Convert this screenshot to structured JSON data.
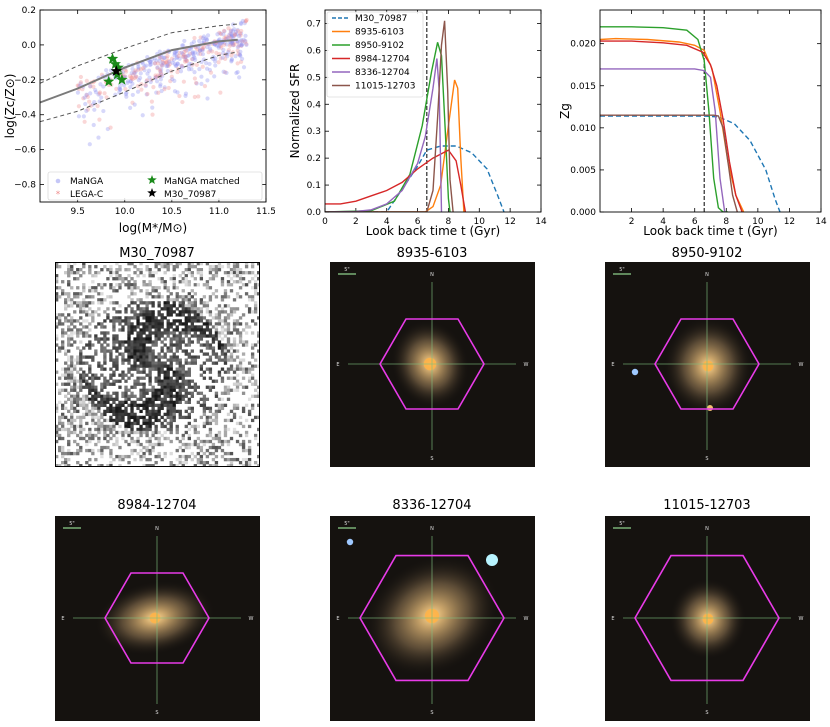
{
  "chart_data": [
    {
      "type": "scatter",
      "xlabel": "log(M*/M⊙)",
      "ylabel": "log(Zc/Z⊙)",
      "xlim": [
        9.1,
        11.5
      ],
      "ylim": [
        -0.9,
        0.2
      ],
      "xticks": [
        "9.5",
        "10.0",
        "10.5",
        "11.0",
        "11.5"
      ],
      "xtick_values": [
        9.5,
        10.0,
        10.5,
        11.0,
        11.5
      ],
      "yticks": [
        "0.2",
        "0.0",
        "−0.2",
        "−0.4",
        "−0.6",
        "−0.8"
      ],
      "ytick_values": [
        0.2,
        0.0,
        -0.2,
        -0.4,
        -0.6,
        -0.8
      ],
      "legend": [
        "MaNGA",
        "LEGA-C",
        "MaNGA matched",
        "M30_70987"
      ],
      "colors": {
        "manga": "#8c8ff0",
        "legac": "#f08c8c",
        "matched": "#1a8a1a",
        "m30": "#000000",
        "median": "#7a7a7a",
        "band": "#555555"
      },
      "median_line": {
        "x": [
          9.1,
          9.5,
          10.0,
          10.5,
          11.0,
          11.2
        ],
        "y": [
          -0.33,
          -0.25,
          -0.13,
          -0.03,
          0.02,
          0.03
        ]
      },
      "upper_band": {
        "x": [
          9.1,
          9.5,
          10.0,
          10.5,
          11.0,
          11.2
        ],
        "y": [
          -0.22,
          -0.12,
          -0.02,
          0.07,
          0.11,
          0.12
        ]
      },
      "lower_band": {
        "x": [
          9.1,
          9.5,
          10.0,
          10.5,
          11.0,
          11.2
        ],
        "y": [
          -0.44,
          -0.38,
          -0.27,
          -0.15,
          -0.06,
          -0.04
        ]
      },
      "matched_points": {
        "x": [
          9.87,
          9.9,
          9.93,
          9.83,
          9.97,
          9.92
        ],
        "y": [
          -0.08,
          -0.11,
          -0.13,
          -0.21,
          -0.2,
          -0.17
        ]
      },
      "m30_point": {
        "x": 9.91,
        "y": -0.15
      }
    },
    {
      "type": "line",
      "xlabel": "Look back time t (Gyr)",
      "ylabel": "Normalized SFR",
      "xlim": [
        0,
        14
      ],
      "ylim": [
        0,
        0.75
      ],
      "xticks": [
        "0",
        "2",
        "4",
        "6",
        "8",
        "10",
        "12",
        "14"
      ],
      "xtick_values": [
        0,
        2,
        4,
        6,
        8,
        10,
        12,
        14
      ],
      "yticks": [
        "0.0",
        "0.1",
        "0.2",
        "0.3",
        "0.4",
        "0.5",
        "0.6",
        "0.7"
      ],
      "ytick_values": [
        0,
        0.1,
        0.2,
        0.3,
        0.4,
        0.5,
        0.6,
        0.7
      ],
      "vline": 6.6,
      "series": [
        {
          "name": "M30_70987",
          "color": "#1f77b4",
          "dashed": true,
          "x": [
            0,
            4,
            6,
            6.6,
            7.5,
            8.5,
            9.5,
            10.5,
            11.2,
            11.6
          ],
          "y": [
            0,
            0,
            0.17,
            0.23,
            0.245,
            0.245,
            0.22,
            0.16,
            0.06,
            0
          ]
        },
        {
          "name": "8935-6103",
          "color": "#ff7f0e",
          "dashed": false,
          "x": [
            0,
            6.5,
            7.0,
            7.5,
            8.0,
            8.4,
            8.6,
            8.8,
            9.0
          ],
          "y": [
            0,
            0,
            0.02,
            0.1,
            0.32,
            0.49,
            0.46,
            0.2,
            0
          ]
        },
        {
          "name": "8950-9102",
          "color": "#2ca02c",
          "dashed": false,
          "x": [
            0,
            3,
            4.5,
            5.5,
            6.3,
            6.9,
            7.3,
            7.55,
            7.8,
            8.0,
            8.1
          ],
          "y": [
            0,
            0.005,
            0.04,
            0.14,
            0.32,
            0.52,
            0.63,
            0.58,
            0.3,
            0.05,
            0
          ]
        },
        {
          "name": "8984-12704",
          "color": "#d62728",
          "dashed": false,
          "x": [
            0,
            1,
            2,
            3,
            4,
            5,
            6,
            7,
            8,
            8.5,
            8.8,
            9.1
          ],
          "y": [
            0.03,
            0.03,
            0.04,
            0.06,
            0.08,
            0.11,
            0.16,
            0.2,
            0.23,
            0.19,
            0.1,
            0
          ]
        },
        {
          "name": "8336-12704",
          "color": "#9467bd",
          "dashed": false,
          "x": [
            0,
            2,
            3,
            4,
            5,
            6,
            6.5,
            7.0,
            7.25,
            7.4,
            7.55
          ],
          "y": [
            0,
            0.002,
            0.008,
            0.03,
            0.08,
            0.18,
            0.28,
            0.46,
            0.57,
            0.45,
            0
          ]
        },
        {
          "name": "11015-12703",
          "color": "#8c564b",
          "dashed": false,
          "x": [
            0,
            6.6,
            7.0,
            7.3,
            7.55,
            7.75,
            7.95,
            8.1,
            8.3
          ],
          "y": [
            0,
            0,
            0.08,
            0.35,
            0.62,
            0.71,
            0.45,
            0.12,
            0
          ]
        }
      ]
    },
    {
      "type": "line",
      "xlabel": "Look back time t (Gyr)",
      "ylabel": "Zg",
      "xlim": [
        0,
        14
      ],
      "ylim": [
        0,
        0.024
      ],
      "xticks": [
        "2",
        "4",
        "6",
        "8",
        "10",
        "12",
        "14"
      ],
      "xtick_values": [
        2,
        4,
        6,
        8,
        10,
        12,
        14
      ],
      "yticks": [
        "0.000",
        "0.005",
        "0.010",
        "0.015",
        "0.020"
      ],
      "ytick_values": [
        0,
        0.005,
        0.01,
        0.015,
        0.02
      ],
      "vline": 6.6,
      "series": [
        {
          "name": "M30_70987",
          "color": "#1f77b4",
          "dashed": true,
          "x": [
            0,
            6.6,
            7.5,
            8.5,
            9.5,
            10.5,
            11.1,
            11.4
          ],
          "y": [
            0.0114,
            0.0114,
            0.0113,
            0.0105,
            0.0085,
            0.005,
            0.0015,
            0
          ]
        },
        {
          "name": "8935-6103",
          "color": "#ff7f0e",
          "dashed": false,
          "x": [
            0,
            1,
            3,
            5,
            6,
            6.6,
            7.1,
            7.6,
            8.1,
            8.6,
            9.1
          ],
          "y": [
            0.0205,
            0.0206,
            0.0205,
            0.0202,
            0.0198,
            0.0192,
            0.017,
            0.012,
            0.006,
            0.002,
            0
          ]
        },
        {
          "name": "8950-9102",
          "color": "#2ca02c",
          "dashed": false,
          "x": [
            0,
            2,
            4,
            5.5,
            6.2,
            6.6,
            6.9,
            7.2,
            7.5,
            7.8,
            8.1
          ],
          "y": [
            0.022,
            0.022,
            0.0219,
            0.0216,
            0.0205,
            0.018,
            0.012,
            0.004,
            0.0005,
            0,
            0
          ]
        },
        {
          "name": "8984-12704",
          "color": "#d62728",
          "dashed": false,
          "x": [
            0,
            2,
            4,
            5.5,
            6.5,
            7.0,
            7.4,
            7.8,
            8.2,
            8.6,
            9.0
          ],
          "y": [
            0.0203,
            0.0203,
            0.0201,
            0.0198,
            0.019,
            0.0175,
            0.015,
            0.011,
            0.006,
            0.002,
            0
          ]
        },
        {
          "name": "8336-12704",
          "color": "#9467bd",
          "dashed": false,
          "x": [
            0,
            2,
            4,
            6,
            6.6,
            7.0,
            7.3,
            7.6,
            7.9
          ],
          "y": [
            0.017,
            0.017,
            0.017,
            0.017,
            0.0168,
            0.016,
            0.012,
            0.004,
            0
          ]
        },
        {
          "name": "11015-12703",
          "color": "#8c564b",
          "dashed": false,
          "x": [
            0,
            2,
            4,
            6,
            7.2,
            7.5,
            7.8,
            8.1,
            8.4,
            8.7
          ],
          "y": [
            0.0115,
            0.0115,
            0.0115,
            0.0115,
            0.0115,
            0.0114,
            0.01,
            0.006,
            0.002,
            0
          ]
        }
      ]
    }
  ],
  "images": [
    {
      "title": "M30_70987"
    },
    {
      "title": "8935-6103"
    },
    {
      "title": "8950-9102"
    },
    {
      "title": "8984-12704"
    },
    {
      "title": "8336-12704"
    },
    {
      "title": "11015-12703"
    }
  ],
  "compass": {
    "n": "N",
    "s": "S",
    "e": "E",
    "w": "W",
    "scale": "5\""
  }
}
